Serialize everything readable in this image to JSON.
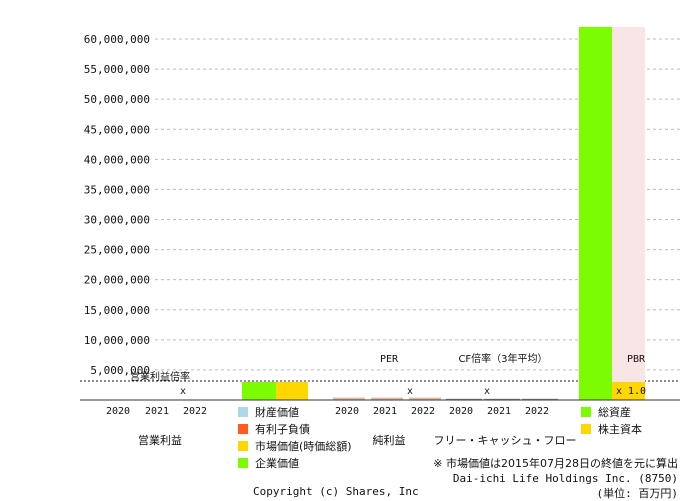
{
  "chart_data": {
    "type": "bar",
    "ylim": [
      0,
      60000000
    ],
    "ytick_labels": [
      "5,000,000",
      "10,000,000",
      "15,000,000",
      "20,000,000",
      "25,000,000",
      "30,000,000",
      "35,000,000",
      "40,000,000",
      "45,000,000",
      "50,000,000",
      "55,000,000",
      "60,000,000"
    ],
    "years": [
      "2020",
      "2021",
      "2022"
    ],
    "groups": {
      "operating_profit": {
        "title": "営業利益",
        "multiple_label": "営業利益倍率",
        "multiple_value": "x"
      },
      "ev": {
        "series": [
          {
            "name": "企業価値",
            "color": "#7cfc00",
            "value": 3000000
          },
          {
            "name": "市場価値(時価総額)",
            "color": "#ffd700",
            "value": 3000000
          }
        ]
      },
      "net_income": {
        "title": "純利益",
        "multiple_label": "PER",
        "multiple_value": "x",
        "values": [
          400000,
          400000,
          400000
        ],
        "color": "#e8b89a"
      },
      "cashflow": {
        "title": "フリー・キャッシュ・フロー",
        "multiple_label": "CF倍率（3年平均）",
        "multiple_value": "x",
        "values": [
          200000,
          200000,
          200000
        ],
        "color": "#888888"
      },
      "balance": {
        "multiple_label": "PBR",
        "multiple_value": "x 1.0",
        "series": [
          {
            "name": "総資産",
            "color": "#7cfc00",
            "value": 62000000
          },
          {
            "name": "株主資本",
            "color": "#ffd700",
            "value": 3000000
          }
        ],
        "background_color": "#f9e5e5"
      }
    },
    "legend_ev": [
      {
        "name": "財産価値",
        "color": "#add8e6"
      },
      {
        "name": "有利子負債",
        "color": "#ff5a1f"
      },
      {
        "name": "市場価値(時価総額)",
        "color": "#ffd700"
      },
      {
        "name": "企業価値",
        "color": "#7cfc00"
      }
    ],
    "legend_bs": [
      {
        "name": "総資産",
        "color": "#7cfc00"
      },
      {
        "name": "株主資本",
        "color": "#ffd700"
      }
    ]
  },
  "footer": {
    "note": "※ 市場価値は2015年07月28日の終値を元に算出",
    "company": "Dai-ichi Life Holdings Inc. (8750)",
    "unit": "(単位: 百万円)",
    "copyright": "Copyright (c) Shares, Inc"
  }
}
